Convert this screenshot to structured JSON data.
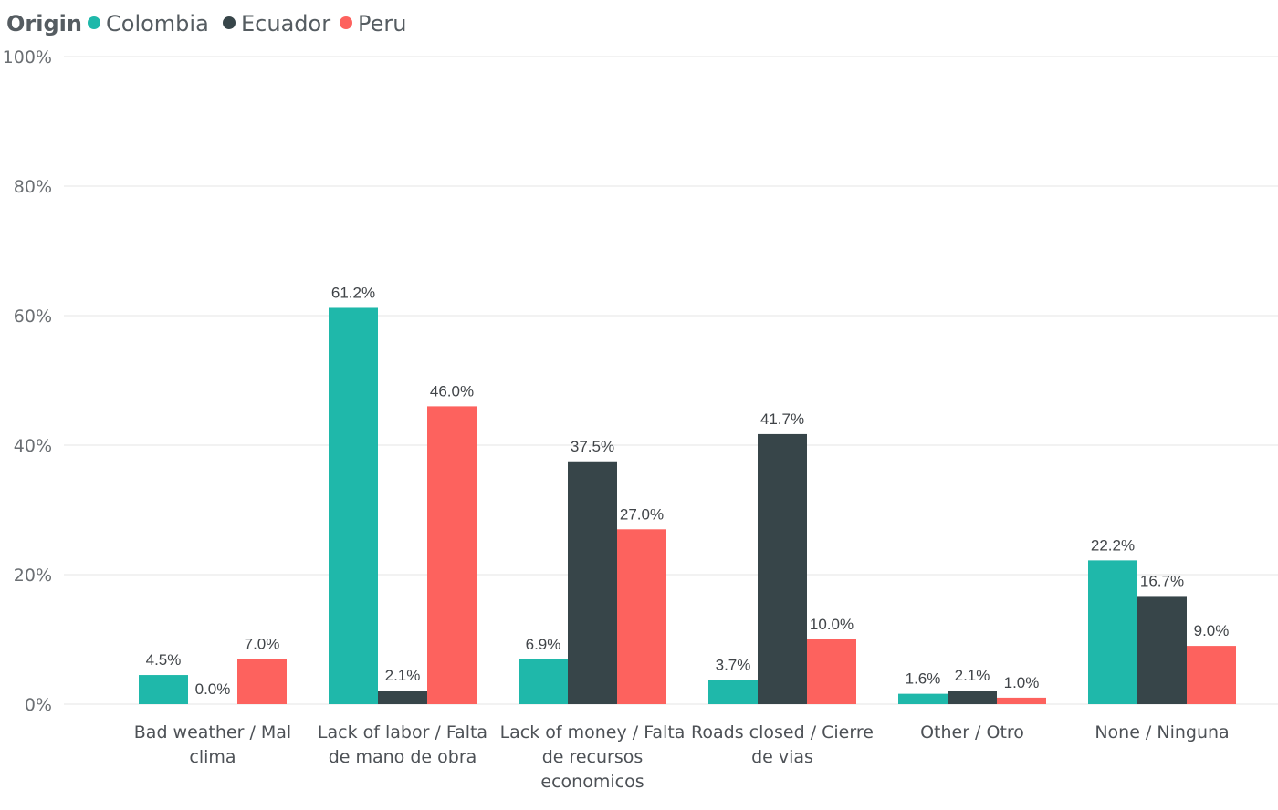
{
  "chart_data": {
    "type": "bar",
    "legend": {
      "title": "Origin",
      "position": "top-left"
    },
    "categories": [
      [
        "Bad weather / Mal",
        "clima"
      ],
      [
        "Lack of labor / Falta",
        "de mano de obra"
      ],
      [
        "Lack of money / Falta",
        "de recursos",
        "economicos"
      ],
      [
        "Roads closed / Cierre",
        "de vias"
      ],
      [
        "Other / Otro"
      ],
      [
        "None / Ninguna"
      ]
    ],
    "series": [
      {
        "name": "Colombia",
        "color": "#1fb8aa",
        "values": [
          4.5,
          61.2,
          6.9,
          3.7,
          1.6,
          22.2
        ],
        "labels": [
          "4.5%",
          "61.2%",
          "6.9%",
          "3.7%",
          "1.6%",
          "22.2%"
        ]
      },
      {
        "name": "Ecuador",
        "color": "#374549",
        "values": [
          0.0,
          2.1,
          37.5,
          41.7,
          2.1,
          16.7
        ],
        "labels": [
          "0.0%",
          "2.1%",
          "37.5%",
          "41.7%",
          "2.1%",
          "16.7%"
        ]
      },
      {
        "name": "Peru",
        "color": "#fd625e",
        "values": [
          7.0,
          46.0,
          27.0,
          10.0,
          1.0,
          9.0
        ],
        "labels": [
          "7.0%",
          "46.0%",
          "27.0%",
          "10.0%",
          "1.0%",
          "9.0%"
        ]
      }
    ],
    "yaxis": {
      "ticks": [
        0,
        20,
        40,
        60,
        80,
        100
      ],
      "tick_labels": [
        "0%",
        "20%",
        "40%",
        "60%",
        "80%",
        "100%"
      ],
      "ylim": [
        0,
        100
      ]
    },
    "xlabel": "",
    "ylabel": "",
    "grid": true
  }
}
